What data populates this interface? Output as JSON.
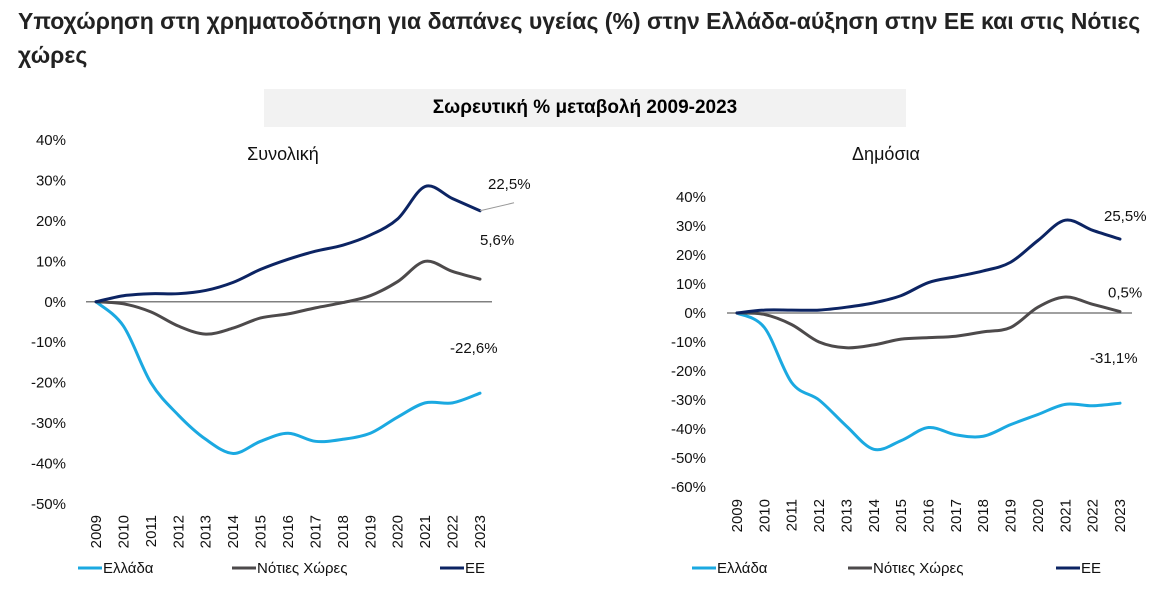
{
  "title": "Υποχώρηση στη χρηματοδότηση για δαπάνες υγείας (%) στην Ελλάδα-αύξηση στην ΕΕ και στις Νότιες χώρες",
  "subtitle": "Σωρευτική % μεταβολή 2009-2023",
  "colors": {
    "greece": "#1ba9e1",
    "south": "#4d4a4b",
    "eu": "#0c2463",
    "zero_line": "#808080"
  },
  "chart_data": [
    {
      "type": "line",
      "title": "Συνολική",
      "categories": [
        "2009",
        "2010",
        "2011",
        "2012",
        "2013",
        "2014",
        "2015",
        "2016",
        "2017",
        "2018",
        "2019",
        "2020",
        "2021",
        "2022",
        "2023"
      ],
      "ylim": [
        -50,
        40
      ],
      "yticks": [
        "40%",
        "30%",
        "20%",
        "10%",
        "0%",
        "-10%",
        "-20%",
        "-30%",
        "-40%",
        "-50%"
      ],
      "ytick_values": [
        40,
        30,
        20,
        10,
        0,
        -10,
        -20,
        -30,
        -40,
        -50
      ],
      "series": [
        {
          "name": "Ελλάδα",
          "key": "greece",
          "values": [
            0,
            -6,
            -20,
            -28,
            -34,
            -37.5,
            -34.5,
            -32.5,
            -34.5,
            -34,
            -32.5,
            -28.5,
            -25,
            -25,
            -22.6
          ],
          "end_label": "-22,6%"
        },
        {
          "name": "Νότιες Χώρες",
          "key": "south",
          "values": [
            0,
            -0.5,
            -2.5,
            -6,
            -8,
            -6.5,
            -4,
            -3,
            -1.5,
            -0.2,
            1.5,
            5,
            10,
            7.5,
            5.6
          ],
          "end_label": "5,6%"
        },
        {
          "name": "ΕΕ",
          "key": "eu",
          "values": [
            0,
            1.5,
            2,
            2,
            2.8,
            4.8,
            8,
            10.5,
            12.5,
            14,
            16.5,
            20.5,
            28.5,
            25.5,
            22.5
          ],
          "end_label": "22,5%"
        }
      ],
      "legend": "bottom"
    },
    {
      "type": "line",
      "title": "Δημόσια",
      "categories": [
        "2009",
        "2010",
        "2011",
        "2012",
        "2013",
        "2014",
        "2015",
        "2016",
        "2017",
        "2018",
        "2019",
        "2020",
        "2021",
        "2022",
        "2023"
      ],
      "ylim": [
        -60,
        40
      ],
      "yticks": [
        "40%",
        "30%",
        "20%",
        "10%",
        "0%",
        "-10%",
        "-20%",
        "-30%",
        "-40%",
        "-50%",
        "-60%"
      ],
      "ytick_values": [
        40,
        30,
        20,
        10,
        0,
        -10,
        -20,
        -30,
        -40,
        -50,
        -60
      ],
      "series": [
        {
          "name": "Ελλάδα",
          "key": "greece",
          "values": [
            0,
            -5,
            -24,
            -30,
            -39,
            -47,
            -44,
            -39.5,
            -42,
            -42.5,
            -38.5,
            -35,
            -31.5,
            -32,
            -31.1
          ],
          "end_label": "-31,1%"
        },
        {
          "name": "Νότιες Χώρες",
          "key": "south",
          "values": [
            0,
            -0.5,
            -4,
            -10,
            -12,
            -11,
            -9,
            -8.5,
            -8,
            -6.5,
            -5,
            2,
            5.5,
            3,
            0.5
          ],
          "end_label": "0,5%"
        },
        {
          "name": "ΕΕ",
          "key": "eu",
          "values": [
            0,
            1,
            1,
            1,
            2,
            3.5,
            6,
            10.5,
            12.5,
            14.5,
            17.5,
            25,
            32,
            28.5,
            25.5
          ],
          "end_label": "25,5%"
        }
      ],
      "legend": "bottom"
    }
  ]
}
